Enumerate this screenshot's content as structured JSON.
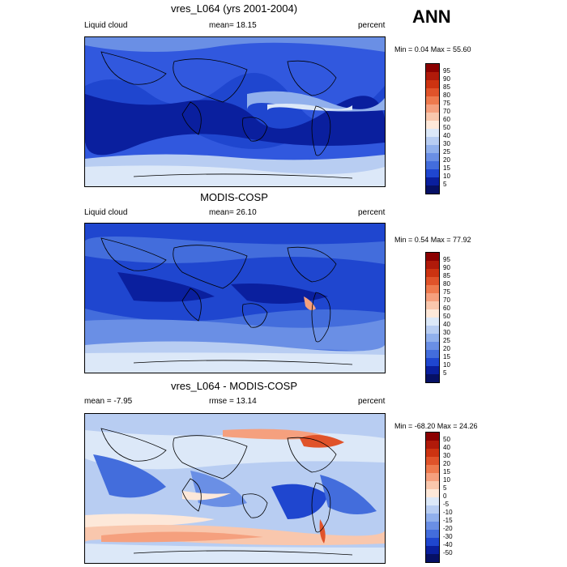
{
  "season": "ANN",
  "panels": [
    {
      "title": "vres_L064 (yrs 2001-2004)",
      "left_label": "Liquid cloud",
      "center_label": "mean=  18.15",
      "right_label": "percent",
      "minmax": "Min =   0.04 Max =  55.60",
      "colorbar": {
        "labels": [
          "95",
          "90",
          "85",
          "80",
          "75",
          "70",
          "60",
          "50",
          "40",
          "30",
          "25",
          "20",
          "15",
          "10",
          "5"
        ],
        "colors": [
          "#8b0000",
          "#b01a0a",
          "#cc3311",
          "#e0532a",
          "#ee7a4e",
          "#f5a07e",
          "#f9c7ad",
          "#fde8d9",
          "#dce8f8",
          "#b8cdf2",
          "#91b0ec",
          "#6a8fe5",
          "#436ddc",
          "#1f46cf",
          "#0a1f9e",
          "#061065"
        ]
      }
    },
    {
      "title": "MODIS-COSP",
      "left_label": "Liquid cloud",
      "center_label": "mean=  26.10",
      "right_label": "percent",
      "minmax": "Min =   0.54 Max =  77.92",
      "colorbar": {
        "labels": [
          "95",
          "90",
          "85",
          "80",
          "75",
          "70",
          "60",
          "50",
          "40",
          "30",
          "25",
          "20",
          "15",
          "10",
          "5"
        ],
        "colors": [
          "#8b0000",
          "#b01a0a",
          "#cc3311",
          "#e0532a",
          "#ee7a4e",
          "#f5a07e",
          "#f9c7ad",
          "#fde8d9",
          "#dce8f8",
          "#b8cdf2",
          "#91b0ec",
          "#6a8fe5",
          "#436ddc",
          "#1f46cf",
          "#0a1f9e",
          "#061065"
        ]
      }
    },
    {
      "title": "vres_L064 - MODIS-COSP",
      "left_label": "mean =  -7.95",
      "center_label": "rmse =  13.14",
      "right_label": "percent",
      "minmax": "Min = -68.20 Max =  24.26",
      "colorbar": {
        "labels": [
          "50",
          "40",
          "30",
          "20",
          "15",
          "10",
          "5",
          "0",
          "-5",
          "-10",
          "-15",
          "-20",
          "-30",
          "-40",
          "-50"
        ],
        "colors": [
          "#8b0000",
          "#b01a0a",
          "#cc3311",
          "#e0532a",
          "#ee7a4e",
          "#f5a07e",
          "#f9c7ad",
          "#fde8d9",
          "#dce8f8",
          "#b8cdf2",
          "#91b0ec",
          "#6a8fe5",
          "#436ddc",
          "#1f46cf",
          "#0a1f9e",
          "#061065"
        ]
      }
    }
  ]
}
